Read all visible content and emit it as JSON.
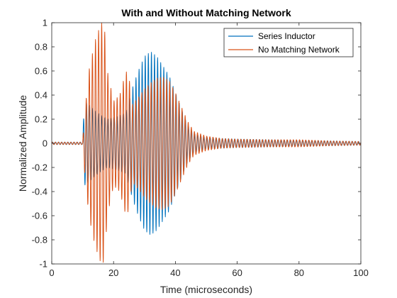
{
  "chart_data": {
    "type": "line",
    "title": "With and Without Matching Network",
    "xlabel": "Time (microseconds)",
    "ylabel": "Normalized Amplitude",
    "xlim": [
      0,
      100
    ],
    "ylim": [
      -1,
      1
    ],
    "xticks": [
      0,
      20,
      40,
      60,
      80,
      100
    ],
    "yticks": [
      -1,
      -0.8,
      -0.6,
      -0.4,
      -0.2,
      0,
      0.2,
      0.4,
      0.6,
      0.8,
      1
    ],
    "grid": false,
    "legend_position": "top-right",
    "series": [
      {
        "name": "Series Inductor",
        "color": "#0072BD",
        "envelope": [
          [
            0,
            0.01
          ],
          [
            10,
            0.01
          ],
          [
            10.5,
            0.35
          ],
          [
            12,
            0.32
          ],
          [
            15,
            0.25
          ],
          [
            18,
            0.2
          ],
          [
            21,
            0.22
          ],
          [
            24,
            0.25
          ],
          [
            26,
            0.45
          ],
          [
            28,
            0.6
          ],
          [
            30,
            0.72
          ],
          [
            32,
            0.76
          ],
          [
            34,
            0.72
          ],
          [
            36,
            0.64
          ],
          [
            38,
            0.56
          ],
          [
            40,
            0.42
          ],
          [
            42,
            0.28
          ],
          [
            44,
            0.15
          ],
          [
            46,
            0.08
          ],
          [
            50,
            0.05
          ],
          [
            55,
            0.04
          ],
          [
            60,
            0.035
          ],
          [
            70,
            0.03
          ],
          [
            80,
            0.025
          ],
          [
            90,
            0.02
          ],
          [
            100,
            0.015
          ]
        ]
      },
      {
        "name": "No Matching Network",
        "color": "#D95319",
        "envelope": [
          [
            0,
            0.01
          ],
          [
            10,
            0.01
          ],
          [
            10.5,
            0.2
          ],
          [
            12,
            0.6
          ],
          [
            14,
            0.85
          ],
          [
            16,
            1.0
          ],
          [
            17,
            0.98
          ],
          [
            18,
            0.6
          ],
          [
            20,
            0.35
          ],
          [
            22,
            0.4
          ],
          [
            24,
            0.6
          ],
          [
            25,
            0.55
          ],
          [
            26,
            0.32
          ],
          [
            28,
            0.38
          ],
          [
            30,
            0.45
          ],
          [
            32,
            0.5
          ],
          [
            34,
            0.54
          ],
          [
            36,
            0.55
          ],
          [
            38,
            0.52
          ],
          [
            40,
            0.42
          ],
          [
            42,
            0.3
          ],
          [
            44,
            0.18
          ],
          [
            46,
            0.1
          ],
          [
            50,
            0.06
          ],
          [
            55,
            0.04
          ],
          [
            60,
            0.035
          ],
          [
            70,
            0.03
          ],
          [
            80,
            0.03
          ],
          [
            90,
            0.02
          ],
          [
            100,
            0.015
          ]
        ]
      }
    ]
  }
}
